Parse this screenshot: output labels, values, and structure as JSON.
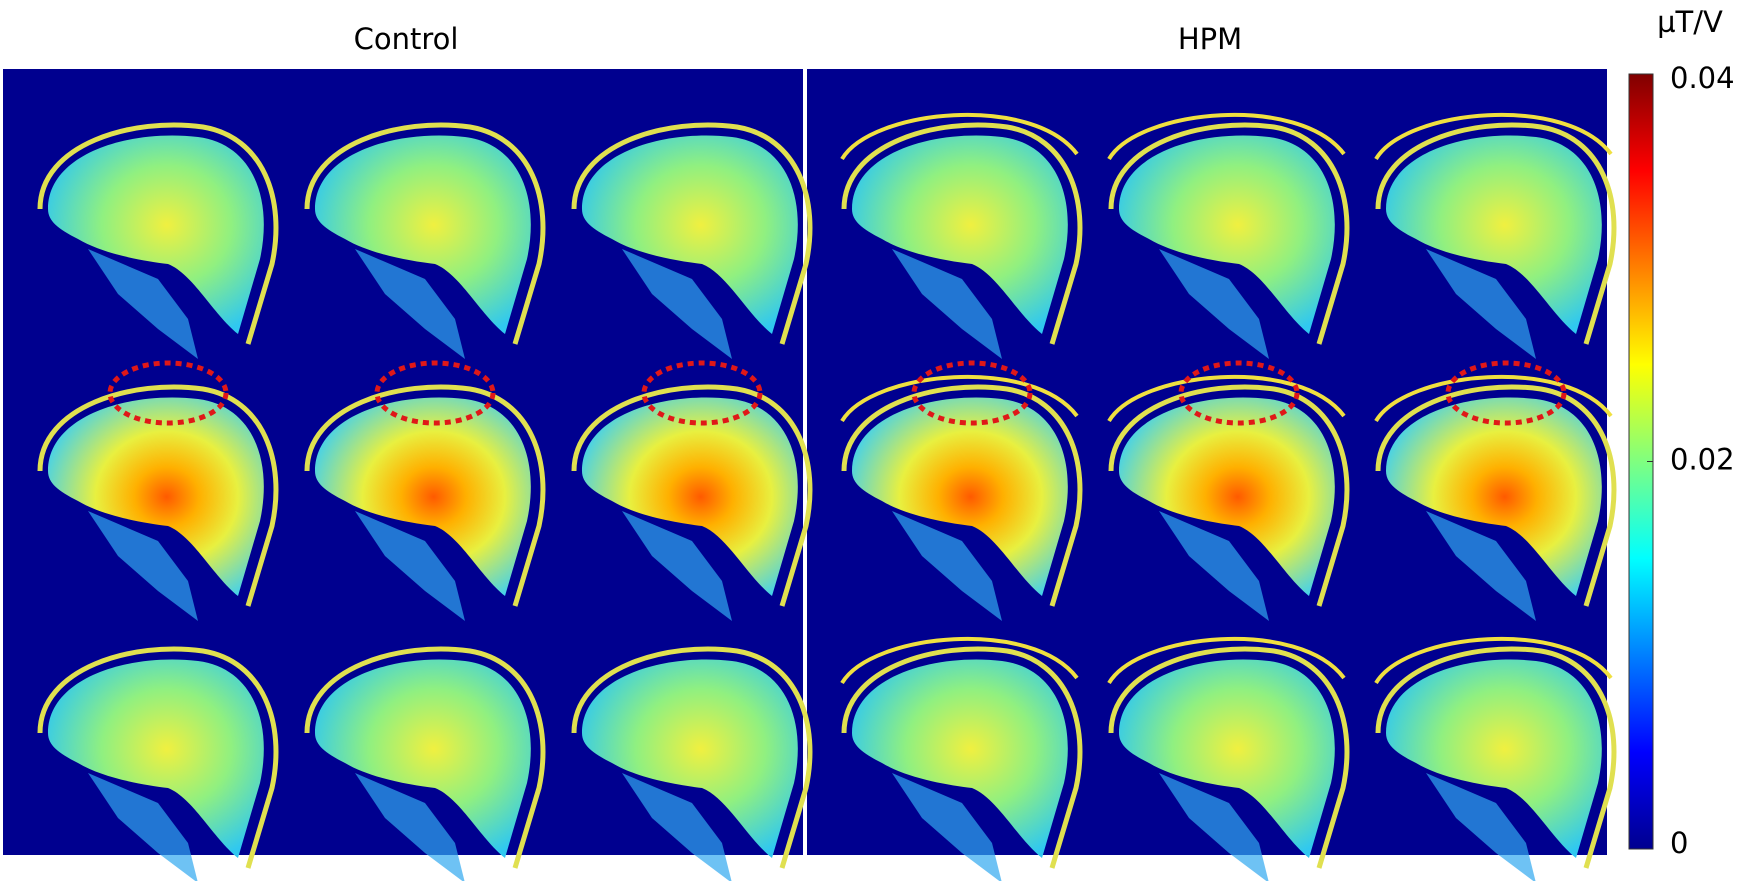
{
  "panels": [
    {
      "title": "Control"
    },
    {
      "title": "HPM"
    }
  ],
  "colorbar": {
    "label": "µT/V",
    "lim": [
      0,
      0.04
    ],
    "ticks": [
      0,
      0.02,
      0.04
    ]
  }
}
